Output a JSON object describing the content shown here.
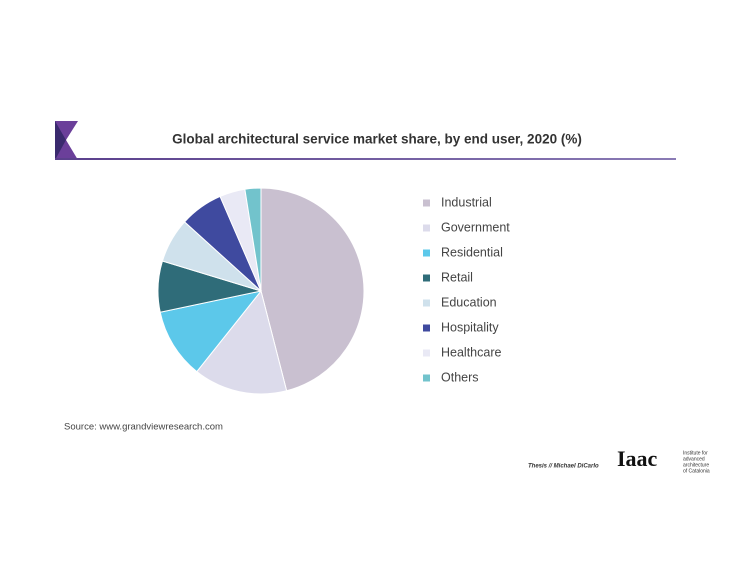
{
  "chart_data": {
    "type": "pie",
    "title": "Global architectural service market share, by end user, 2020 (%)",
    "categories": [
      "Industrial",
      "Government",
      "Residential",
      "Retail",
      "Education",
      "Hospitality",
      "Healthcare",
      "Others"
    ],
    "values": [
      46,
      14.7,
      11,
      8,
      7,
      6.8,
      4,
      2.5
    ],
    "colors": [
      "#c9c0d0",
      "#dcdbeb",
      "#5cc8ea",
      "#2f6c79",
      "#cfe1ec",
      "#3f4a9f",
      "#e9e9f5",
      "#72c3cc"
    ],
    "source": "Source: www.grandviewresearch.com"
  },
  "footer": {
    "credit": "Thesis  //  Michael DiCarlo",
    "logo": "Iaac",
    "institute": [
      "Institute for",
      "advanced",
      "architecture",
      "of Catalonia"
    ]
  }
}
